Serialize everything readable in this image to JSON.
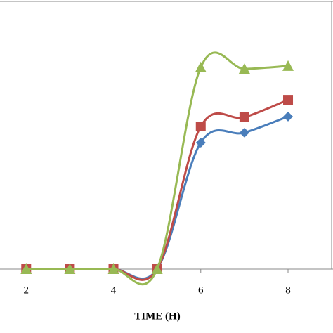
{
  "chart_data": {
    "type": "line",
    "x_label": "TIME (H)",
    "x": [
      2,
      3,
      4,
      5,
      6,
      7,
      8
    ],
    "series": [
      {
        "color": "#4a7ebb",
        "marker": "diamond",
        "values": [
          0,
          0,
          0,
          0,
          47,
          50.7,
          56.7
        ]
      },
      {
        "color": "#be4b48",
        "marker": "square",
        "values": [
          0,
          0,
          0,
          0,
          53,
          56.4,
          62.9
        ]
      },
      {
        "color": "#98b954",
        "marker": "triangle",
        "values": [
          0,
          0,
          0,
          0,
          75,
          74.4,
          75.5
        ]
      }
    ],
    "xlim": [
      1.4,
      9.03
    ],
    "xticks": [
      2,
      4,
      6,
      8
    ],
    "ylim": [
      0,
      100
    ]
  }
}
